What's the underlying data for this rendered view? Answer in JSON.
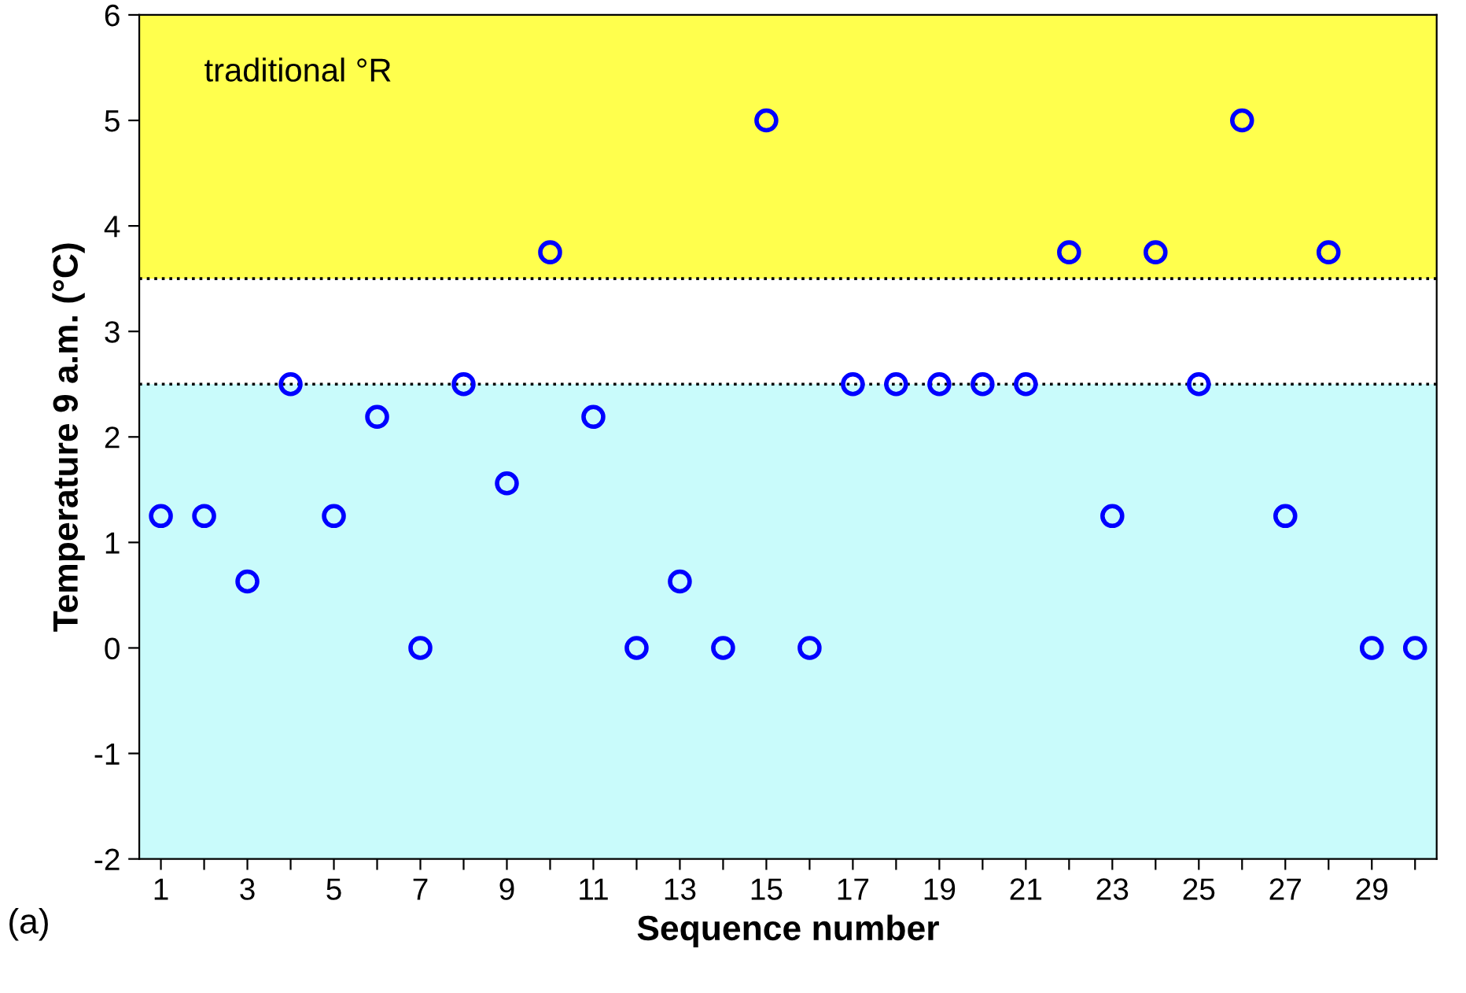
{
  "chart_data": {
    "type": "scatter",
    "xlabel": "Sequence number",
    "ylabel": "Temperature 9 a.m. (°C)",
    "x": [
      1,
      2,
      3,
      4,
      5,
      6,
      7,
      8,
      9,
      10,
      11,
      12,
      13,
      14,
      15,
      16,
      17,
      18,
      19,
      20,
      21,
      22,
      23,
      24,
      25,
      26,
      27,
      28,
      29,
      30
    ],
    "series": [
      {
        "color": "#0000ff",
        "values": [
          1.25,
          1.25,
          0.63,
          2.5,
          1.25,
          2.19,
          0,
          2.5,
          1.56,
          3.75,
          2.19,
          0,
          0.63,
          0,
          5,
          0,
          2.5,
          2.5,
          2.5,
          2.5,
          2.5,
          3.75,
          1.25,
          3.75,
          2.5,
          5,
          1.25,
          3.75,
          0,
          0
        ]
      }
    ],
    "marker": "circle",
    "xlim": [
      0.5,
      30.5
    ],
    "ylim": [
      -2,
      6
    ],
    "xticks": [
      1,
      {
        "value": 2,
        "label": null
      },
      3,
      {
        "value": 4,
        "label": null
      },
      5,
      {
        "value": 6,
        "label": null
      },
      7,
      {
        "value": 8,
        "label": null
      },
      9,
      {
        "value": 10,
        "label": null
      },
      11,
      {
        "value": 12,
        "label": null
      },
      13,
      {
        "value": 14,
        "label": null
      },
      15,
      {
        "value": 16,
        "label": null
      },
      17,
      {
        "value": 18,
        "label": null
      },
      19,
      {
        "value": 20,
        "label": null
      },
      21,
      {
        "value": 22,
        "label": null
      },
      23,
      {
        "value": 24,
        "label": null
      },
      25,
      {
        "value": 26,
        "label": null
      },
      27,
      {
        "value": 28,
        "label": null
      },
      29,
      {
        "value": 30,
        "label": null
      }
    ],
    "yticks": [
      -2,
      -1,
      0,
      1,
      2,
      3,
      4,
      5,
      6
    ],
    "bands": [
      {
        "axis": "y",
        "from": 3.5,
        "to": 6,
        "label": "traditional °R",
        "color": "#ffff4d"
      },
      {
        "axis": "y",
        "from": -2,
        "to": 2.5,
        "label": null,
        "color": "#c9fbfb"
      }
    ],
    "ref_lines": [
      {
        "axis": "y",
        "value": 3.5,
        "label": null,
        "line_style": "dotted",
        "color": "#000000"
      },
      {
        "axis": "y",
        "value": 2.5,
        "label": null,
        "line_style": "dotted",
        "color": "#000000"
      }
    ],
    "annotations": [
      "(a)"
    ],
    "grid": false,
    "legend": false
  }
}
